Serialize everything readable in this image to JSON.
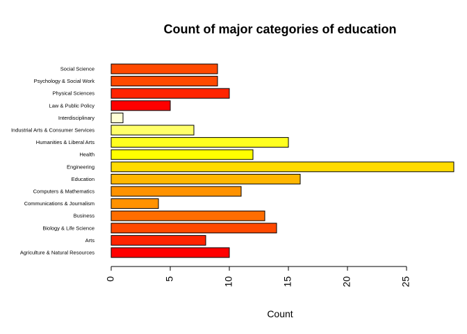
{
  "chart_data": {
    "type": "bar",
    "orientation": "horizontal",
    "title": "Count of major categories of education",
    "xlabel": "Count",
    "ylabel": "",
    "xlim": [
      0,
      29
    ],
    "x_ticks": [
      0,
      5,
      10,
      15,
      20,
      25
    ],
    "grid": false,
    "legend": "none",
    "categories": [
      "Agriculture & Natural Resources",
      "Arts",
      "Biology & Life Science",
      "Business",
      "Communications & Journalism",
      "Computers & Mathematics",
      "Education",
      "Engineering",
      "Health",
      "Humanities & Liberal Arts",
      "Industrial Arts & Consumer Services",
      "Interdisciplinary",
      "Law & Public Policy",
      "Physical Sciences",
      "Psychology & Social Work",
      "Social Science"
    ],
    "values": [
      10,
      8,
      14,
      13,
      4,
      11,
      16,
      29,
      12,
      15,
      7,
      1,
      5,
      10,
      9,
      9
    ],
    "colors": [
      "#FF0000",
      "#FF2400",
      "#FF4900",
      "#FF6D00",
      "#FF9200",
      "#FF9200",
      "#FFB600",
      "#FFDB00",
      "#FFFF00",
      "#FFFF20",
      "#FFFF6A",
      "#FFFFD5",
      "#FF0000",
      "#FF2400",
      "#FF4900",
      "#FF4900"
    ],
    "bar_border_color": "#000000"
  }
}
